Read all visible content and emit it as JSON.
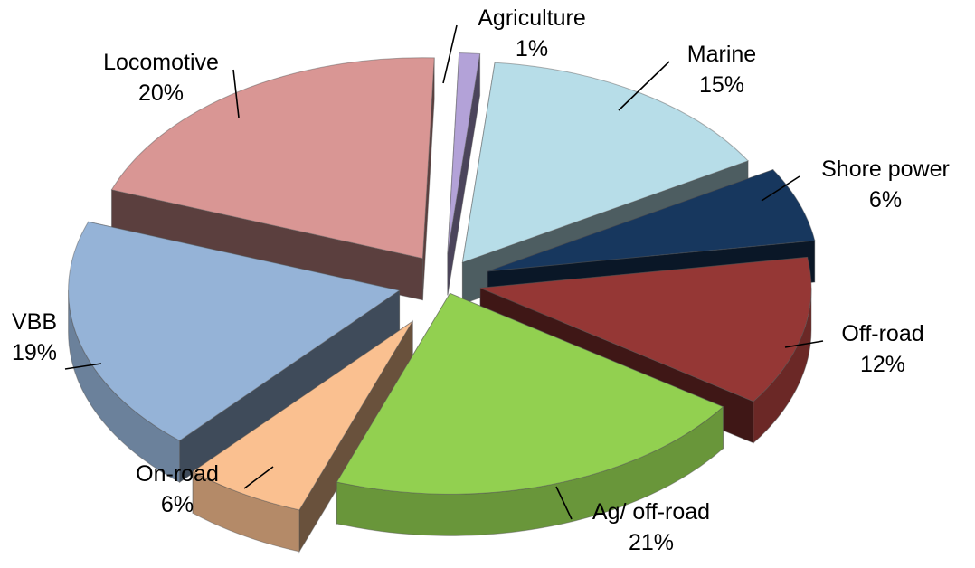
{
  "chart_data": {
    "type": "pie",
    "title": "",
    "slices": [
      {
        "label": "Agriculture",
        "value_label": "1%",
        "value": 1,
        "color": "#B3A2D8"
      },
      {
        "label": "Marine",
        "value_label": "15%",
        "value": 15,
        "color": "#B7DDE8"
      },
      {
        "label": "Shore power",
        "value_label": "6%",
        "value": 6,
        "color": "#17375E"
      },
      {
        "label": "Off-road",
        "value_label": "12%",
        "value": 12,
        "color": "#953735"
      },
      {
        "label": "Ag/ off-road",
        "value_label": "21%",
        "value": 21,
        "color": "#92D050"
      },
      {
        "label": "On-road",
        "value_label": "6%",
        "value": 6,
        "color": "#FAC090"
      },
      {
        "label": "VBB",
        "value_label": "19%",
        "value": 19,
        "color": "#95B3D7"
      },
      {
        "label": "Locomotive",
        "value_label": "20%",
        "value": 20,
        "color": "#D99694"
      }
    ],
    "legend": "none",
    "style": "3d-exploded"
  }
}
